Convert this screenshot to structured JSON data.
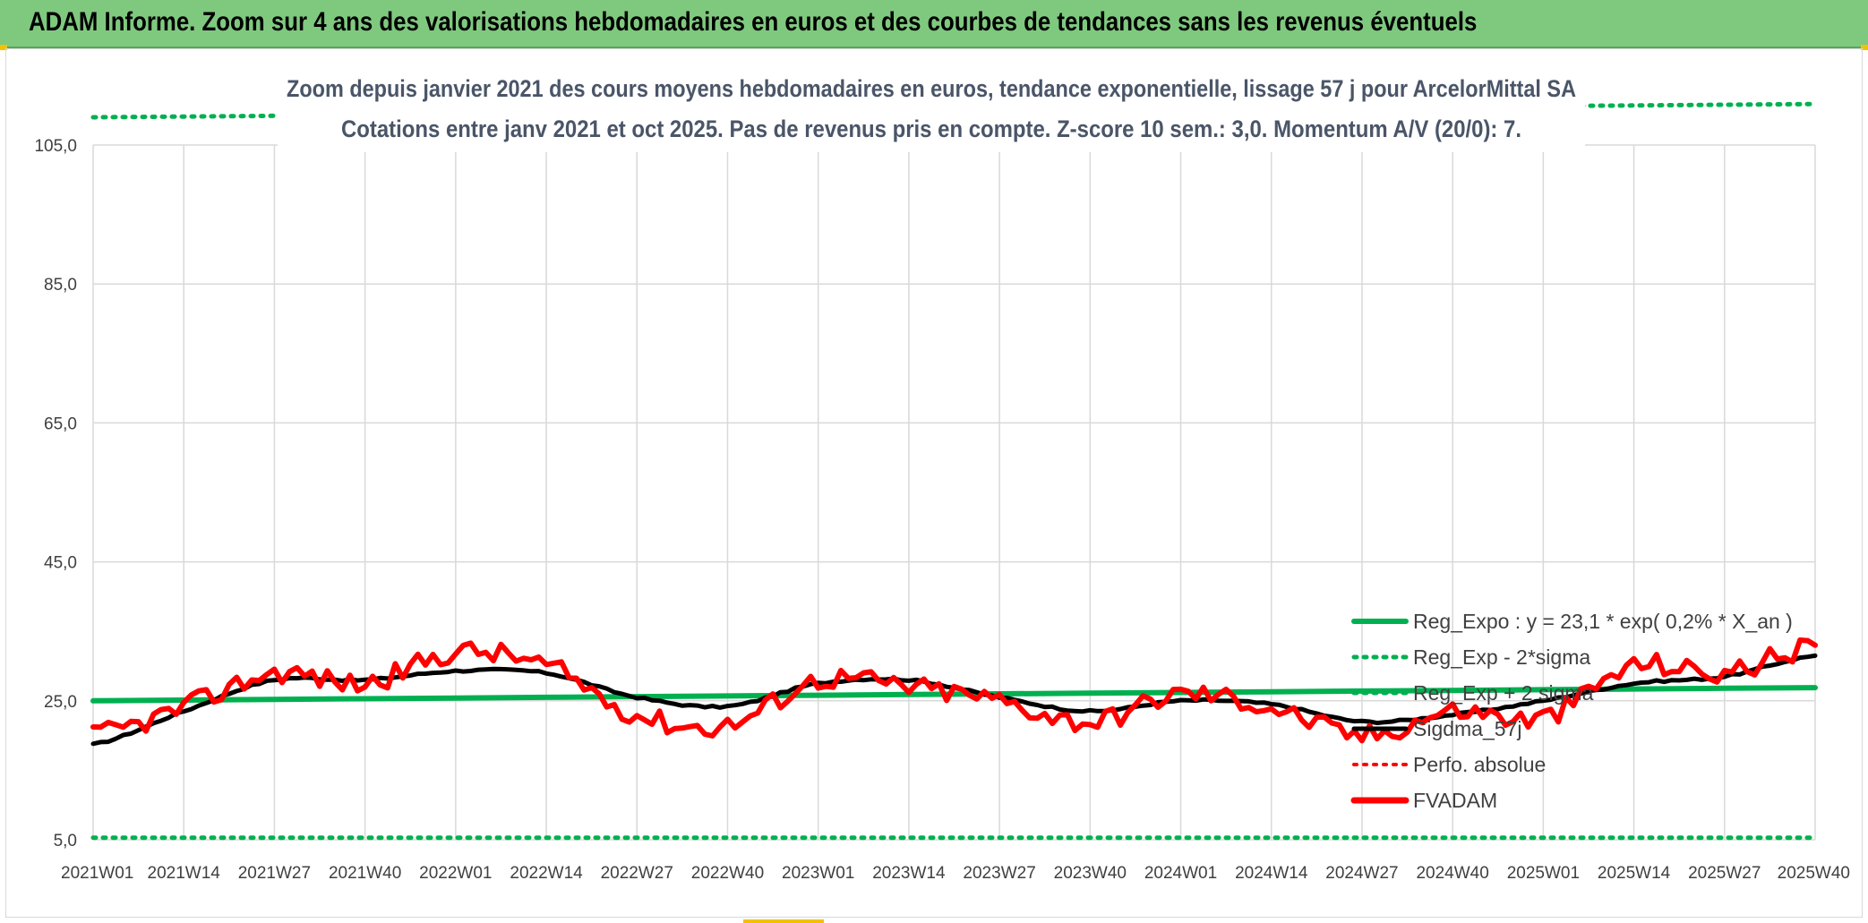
{
  "header": {
    "banner": "ADAM Informe. Zoom sur 4 ans des valorisations hebdomadaires en euros et des courbes de tendances sans les revenus éventuels"
  },
  "chart_data": {
    "type": "line",
    "title": "Zoom depuis janvier 2021 des cours moyens hebdomadaires en euros, tendance exponentielle, lissage 57 j pour ArcelorMittal SA",
    "subtitle": "Cotations entre janv 2021 et oct 2025. Pas de revenus pris en compte. Z-score 10 sem.: 3,0. Momentum A/V (20/0): 7.",
    "xlabel": "",
    "ylabel": "",
    "ylim": [
      5,
      105
    ],
    "y_ticks": [
      "105,0",
      "85,0",
      "65,0",
      "45,0",
      "25,0",
      "5,0"
    ],
    "x_ticks": [
      "2021W01",
      "2021W14",
      "2021W27",
      "2021W40",
      "2022W01",
      "2022W14",
      "2022W27",
      "2022W40",
      "2023W01",
      "2023W14",
      "2023W27",
      "2023W40",
      "2024W01",
      "2024W14",
      "2024W27",
      "2024W40",
      "2025W01",
      "2025W14",
      "2025W27",
      "2025W40"
    ],
    "grid": true,
    "legend_position": "bottom-right",
    "colors": {
      "reg_expo": "#00b050",
      "bands": "#00b050",
      "perfo": "#ff0000",
      "fvadam": "#ff0000",
      "sigdma": "#000000"
    },
    "series": [
      {
        "name": "Reg_Expo : y = 23,1 * exp( 0,2% *  X_an )",
        "style": "solid-thick",
        "values": [
          25.0,
          25.1,
          25.2,
          25.3,
          25.4,
          25.5,
          25.6,
          25.7,
          25.8,
          25.9,
          26.0,
          26.1,
          26.2,
          26.3,
          26.4,
          26.5,
          26.6,
          26.7,
          26.8,
          26.9
        ]
      },
      {
        "name": "Reg_Exp - 2*sigma",
        "style": "dotted",
        "values": [
          5.3,
          5.3,
          5.3,
          5.3,
          5.3,
          5.3,
          5.3,
          5.3,
          5.3,
          5.3,
          5.3,
          5.3,
          5.3,
          5.3,
          5.3,
          5.3,
          5.3,
          5.3,
          5.3,
          5.3
        ]
      },
      {
        "name": "Reg_Exp + 2 sigma",
        "style": "dotted",
        "values": [
          109.0,
          109.1,
          109.2,
          109.3,
          109.4,
          109.5,
          109.6,
          109.7,
          109.8,
          109.9,
          110.0,
          110.1,
          110.2,
          110.3,
          110.4,
          110.5,
          110.6,
          110.7,
          110.8,
          110.9
        ]
      },
      {
        "name": "Sigdma_57j",
        "style": "solid",
        "values": [
          18.7,
          23.5,
          28.0,
          28.0,
          29.3,
          29.0,
          25.5,
          24.2,
          27.5,
          28.0,
          25.5,
          23.5,
          25.0,
          24.5,
          22.0,
          23.0,
          25.0,
          27.5,
          28.5,
          31.5
        ]
      },
      {
        "name": "Perfo. absolue",
        "style": "dotted",
        "values": []
      },
      {
        "name": "FVADAM",
        "style": "solid-thick",
        "values": [
          20.0,
          24.0,
          29.0,
          27.5,
          32.0,
          30.0,
          23.0,
          21.5,
          28.0,
          27.0,
          25.0,
          22.0,
          26.0,
          24.0,
          20.0,
          23.5,
          22.5,
          30.0,
          29.0,
          33.0
        ]
      }
    ]
  }
}
